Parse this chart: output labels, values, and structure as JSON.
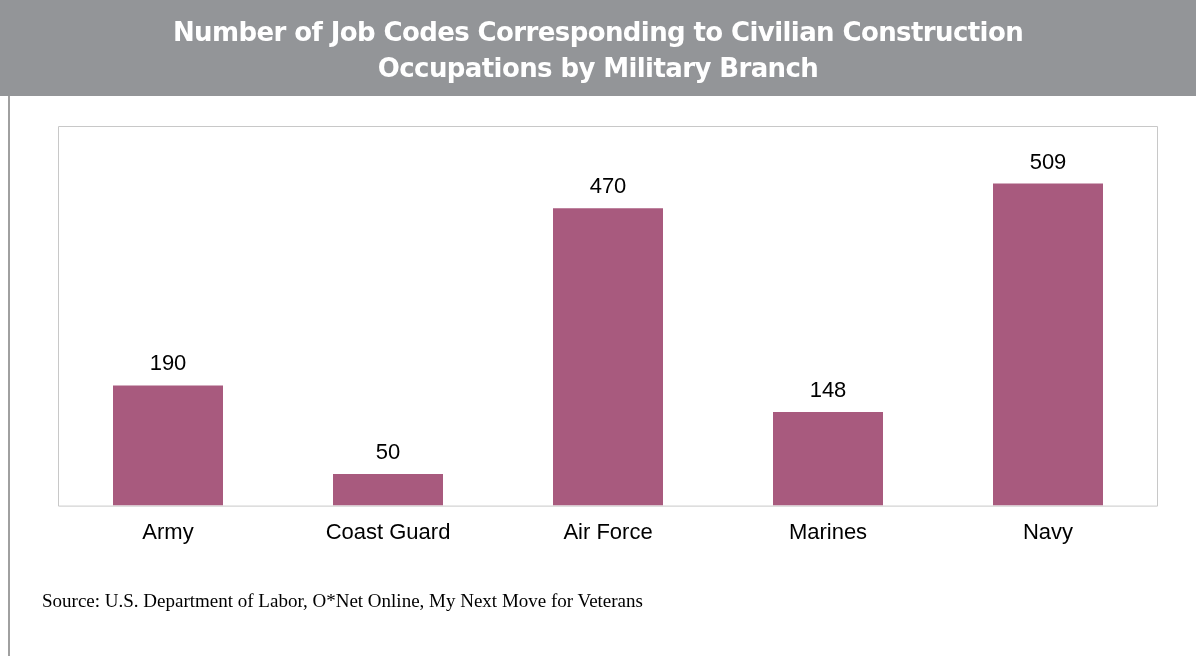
{
  "chart_data": {
    "type": "bar",
    "title": "Number of Job Codes Corresponding to Civilian Construction Occupations by Military Branch",
    "categories": [
      "Army",
      "Coast Guard",
      "Air Force",
      "Marines",
      "Navy"
    ],
    "values": [
      190,
      50,
      470,
      148,
      509
    ],
    "color": "#a85a7e",
    "data_labels": true,
    "grid": false,
    "annotations": [
      "Source: U.S. Department of Labor, O*Net Online, My Next Move for Veterans"
    ]
  }
}
